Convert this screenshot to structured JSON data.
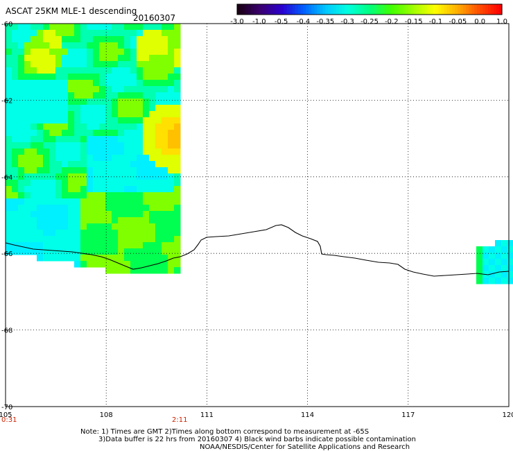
{
  "header": {
    "title": "ASCAT 25KM MLE-1 descending",
    "date": "20160307"
  },
  "colorbar": {
    "stops": [
      "#1a0014",
      "#3a0070",
      "#2a00d0",
      "#0060ff",
      "#00c8ff",
      "#00ffe0",
      "#00ff80",
      "#40ff00",
      "#a0ff00",
      "#ffff00",
      "#ffb000",
      "#ff5000",
      "#ff0000"
    ],
    "labels": [
      "-3.0",
      "-1.0",
      "-0.5",
      "-0.4",
      "-0.35",
      "-0.3",
      "-0.25",
      "-0.2",
      "-0.15",
      "-0.1",
      "-0.05",
      "0.0",
      "1.0"
    ]
  },
  "map": {
    "lat_labels": [
      "-60",
      "-62",
      "-64",
      "-66",
      "-68",
      "-70"
    ],
    "lon_labels": [
      "105",
      "108",
      "111",
      "114",
      "117",
      "120"
    ],
    "time_labels": [
      "0:31",
      "2:11"
    ],
    "time_color": "#cc2200",
    "coastline_color": "#000000"
  },
  "notes": {
    "line1": "Note: 1) Times are GMT 2)Times along bottom correspond to measurement at -65S",
    "line2": "3)Data buffer is 22 hrs from 20160307 4) Black wind barbs indicate possible contamination",
    "line3": "NOAA/NESDIS/Center for Satellite Applications and Research"
  }
}
